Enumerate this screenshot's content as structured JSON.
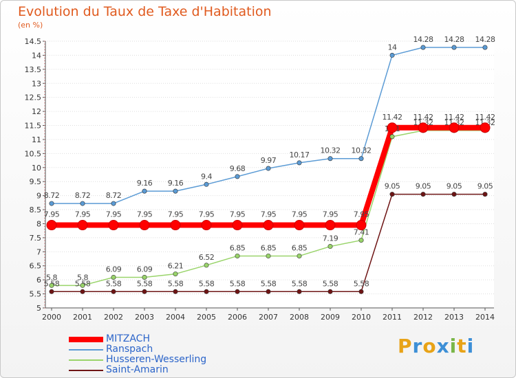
{
  "title": "Evolution du Taux de Taxe d'Habitation",
  "subtitle": "(en %)",
  "logo_text": "Proxiti",
  "logo_colors": [
    "#e8a317",
    "#3d8fd6",
    "#e8a317",
    "#3d8fd6",
    "#7ab648",
    "#e8a317",
    "#3d8fd6"
  ],
  "chart_data": {
    "type": "line",
    "categories": [
      "2000",
      "2001",
      "2002",
      "2003",
      "2004",
      "2005",
      "2006",
      "2007",
      "2008",
      "2009",
      "2010",
      "2011",
      "2012",
      "2013",
      "2014"
    ],
    "ylim": [
      5,
      14.5
    ],
    "yticks": [
      "5",
      "5.5",
      "6",
      "6.5",
      "7",
      "7.5",
      "8",
      "8.5",
      "9",
      "9.5",
      "10",
      "10.5",
      "11",
      "11.5",
      "12",
      "12.5",
      "13",
      "13.5",
      "14",
      "14.5"
    ],
    "legend_position": "bottom-left",
    "series": [
      {
        "name": "Saint-Amarin",
        "color": "#6e1414",
        "values": [
          5.58,
          5.58,
          5.58,
          5.58,
          5.58,
          5.58,
          5.58,
          5.58,
          5.58,
          5.58,
          5.58,
          9.05,
          9.05,
          9.05,
          9.05
        ],
        "labels": [
          "5.58",
          "5.58",
          "5.58",
          "5.58",
          "5.58",
          "5.58",
          "5.58",
          "5.58",
          "5.58",
          "5.58",
          "5.58",
          "9.05",
          "9.05",
          "9.05",
          "9.05"
        ]
      },
      {
        "name": "Husseren-Wesserling",
        "color": "#99d46a",
        "values": [
          5.8,
          5.8,
          6.09,
          6.09,
          6.21,
          6.52,
          6.85,
          6.85,
          6.85,
          7.19,
          7.41,
          11.1,
          11.32,
          11.32,
          11.32
        ],
        "labels": [
          "5.8",
          "5.8",
          "6.09",
          "6.09",
          "6.21",
          "6.52",
          "6.85",
          "6.85",
          "6.85",
          "7.19",
          "7.41",
          "11.1",
          "11.32",
          "11.32",
          "11.32"
        ]
      },
      {
        "name": "Ranspach",
        "color": "#5b9bd5",
        "values": [
          8.72,
          8.72,
          8.72,
          9.16,
          9.16,
          9.4,
          9.68,
          9.97,
          10.17,
          10.32,
          10.32,
          14,
          14.28,
          14.28,
          14.28
        ],
        "labels": [
          "8.72",
          "8.72",
          "8.72",
          "9.16",
          "9.16",
          "9.4",
          "9.68",
          "9.97",
          "10.17",
          "10.32",
          "10.32",
          "14",
          "14.28",
          "14.28",
          "14.28"
        ]
      },
      {
        "name": "MITZACH",
        "color": "#ff0000",
        "values": [
          7.95,
          7.95,
          7.95,
          7.95,
          7.95,
          7.95,
          7.95,
          7.95,
          7.95,
          7.95,
          7.95,
          11.42,
          11.42,
          11.42,
          11.42
        ],
        "labels": [
          "7.95",
          "7.95",
          "7.95",
          "7.95",
          "7.95",
          "7.95",
          "7.95",
          "7.95",
          "7.95",
          "7.95",
          "7.95",
          "11.42",
          "11.42",
          "11.42",
          "11.42"
        ]
      }
    ],
    "legend": [
      "MITZACH",
      "Ranspach",
      "Husseren-Wesserling",
      "Saint-Amarin"
    ]
  }
}
